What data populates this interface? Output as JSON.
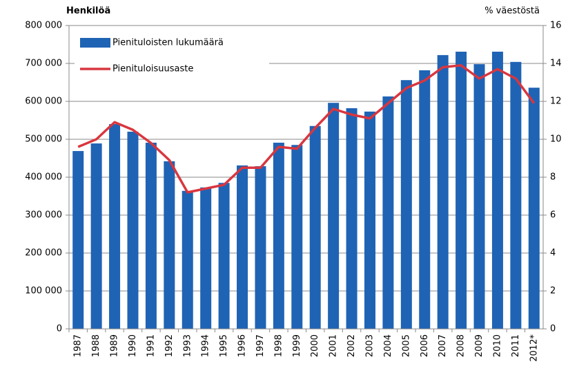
{
  "chart_data": {
    "type": "bar",
    "ylabel": "Henkilöä",
    "y2label": "% väestöstä",
    "categories": [
      "1987",
      "1988",
      "1989",
      "1990",
      "1991",
      "1992",
      "1993",
      "1994",
      "1995",
      "1996",
      "1997",
      "1998",
      "1999",
      "2000",
      "2001",
      "2002",
      "2003",
      "2004",
      "2005",
      "2006",
      "2007",
      "2008",
      "2009",
      "2010",
      "2011",
      "2012*"
    ],
    "series": [
      {
        "name": "Pienituloisten lukumäärä",
        "type": "bar",
        "color": "#1f63b5",
        "values": [
          469000,
          489000,
          540000,
          520000,
          491000,
          442000,
          364000,
          373000,
          385000,
          431000,
          429000,
          491000,
          485000,
          535000,
          596000,
          582000,
          573000,
          613000,
          656000,
          682000,
          722000,
          731000,
          698000,
          731000,
          704000,
          636000
        ]
      },
      {
        "name": "Pienituloisuusaste",
        "type": "line",
        "axis": "y2",
        "color": "#d9363e",
        "values": [
          9.6,
          10.0,
          10.9,
          10.5,
          9.8,
          8.9,
          7.2,
          7.4,
          7.6,
          8.5,
          8.5,
          9.6,
          9.5,
          10.6,
          11.6,
          11.3,
          11.1,
          11.9,
          12.7,
          13.1,
          13.8,
          13.9,
          13.2,
          13.7,
          13.2,
          11.9
        ]
      }
    ],
    "ylim": [
      0,
      800000
    ],
    "yticks": [
      {
        "value": 0,
        "label": "0"
      },
      {
        "value": 100000,
        "label": "100 000"
      },
      {
        "value": 200000,
        "label": "200 000"
      },
      {
        "value": 300000,
        "label": "300 000"
      },
      {
        "value": 400000,
        "label": "400 000"
      },
      {
        "value": 500000,
        "label": "500 000"
      },
      {
        "value": 600000,
        "label": "600 000"
      },
      {
        "value": 700000,
        "label": "700 000"
      },
      {
        "value": 800000,
        "label": "800 000"
      }
    ],
    "y2lim": [
      0,
      16
    ],
    "y2ticks": [
      0,
      2,
      4,
      6,
      8,
      10,
      12,
      14,
      16
    ],
    "grid": true,
    "legend": "upper left"
  }
}
